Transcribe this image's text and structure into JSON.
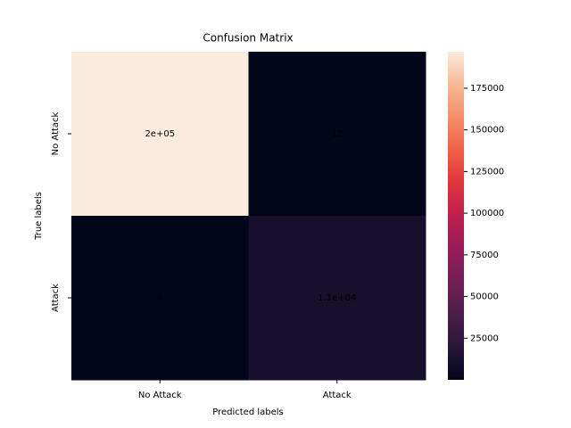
{
  "chart_data": {
    "type": "heatmap",
    "title": "Confusion Matrix",
    "x_label": "Predicted labels",
    "y_label": "True labels",
    "x_categories": [
      "No Attack",
      "Attack"
    ],
    "y_categories": [
      "No Attack",
      "Attack"
    ],
    "values": [
      [
        196900,
        12
      ],
      [
        4,
        11000
      ]
    ],
    "value_labels": [
      [
        "2e+05",
        "12"
      ],
      [
        "4",
        "1.1e+04"
      ]
    ],
    "clim": [
      4,
      196900
    ],
    "cbar_ticks": [
      25000,
      50000,
      75000,
      100000,
      125000,
      150000,
      175000
    ],
    "colormap": [
      "#03051a",
      "#28173a",
      "#4c1d4b",
      "#711f57",
      "#991b58",
      "#be1e4d",
      "#e1343d",
      "#f16046",
      "#f58e68",
      "#f6b994",
      "#faebdd"
    ]
  }
}
